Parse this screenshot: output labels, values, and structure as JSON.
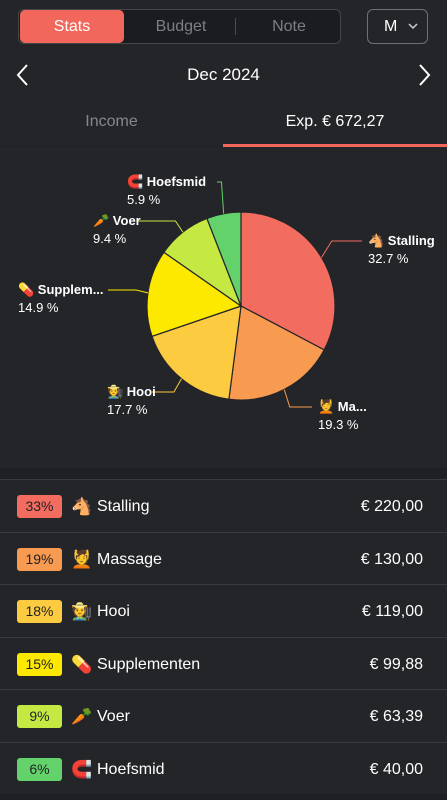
{
  "header": {
    "tabs": [
      {
        "label": "Stats",
        "active": true
      },
      {
        "label": "Budget",
        "active": false
      },
      {
        "label": "Note",
        "active": false
      }
    ],
    "period_label": "M",
    "period_chevron": "chevron-down-icon"
  },
  "month_nav": {
    "title": "Dec 2024",
    "prev_icon": "chevron-left-icon",
    "next_icon": "chevron-right-icon"
  },
  "summary_tabs": {
    "income_label": "Income",
    "expense_label": "Exp. € 672,27"
  },
  "colors": {
    "accent": "#f2675c",
    "background": "#1f2024",
    "panel": "#242529",
    "stalling": "#f26c5f",
    "massage": "#f89a4f",
    "hooi": "#fdcb3f",
    "supplementen": "#fde800",
    "voer": "#c5e843",
    "hoefsmid": "#64d26a"
  },
  "chart_data": {
    "type": "pie",
    "slices": [
      {
        "label": "Stalling",
        "chart_label": "Stalling",
        "icon": "🐴",
        "percent": 32.7,
        "percent_text": "32.7 %",
        "color": "#f26c5f"
      },
      {
        "label": "Massage",
        "chart_label": "Ma...",
        "icon": "💆",
        "percent": 19.3,
        "percent_text": "19.3 %",
        "color": "#f89a4f"
      },
      {
        "label": "Hooi",
        "chart_label": "Hooi",
        "icon": "🧑‍🌾",
        "percent": 17.7,
        "percent_text": "17.7 %",
        "color": "#fdcb3f"
      },
      {
        "label": "Supplementen",
        "chart_label": "Supplem...",
        "icon": "💊",
        "percent": 14.9,
        "percent_text": "14.9 %",
        "color": "#fde800"
      },
      {
        "label": "Voer",
        "chart_label": "Voer",
        "icon": "🥕",
        "percent": 9.4,
        "percent_text": "9.4 %",
        "color": "#c5e843"
      },
      {
        "label": "Hoefsmid",
        "chart_label": "Hoefsmid",
        "icon": "🧲",
        "percent": 5.9,
        "percent_text": "5.9 %",
        "color": "#64d26a"
      }
    ]
  },
  "categories": [
    {
      "badge": "33%",
      "icon": "🐴",
      "name": "Stalling",
      "amount": "€ 220,00",
      "color": "#f26c5f"
    },
    {
      "badge": "19%",
      "icon": "💆",
      "name": "Massage",
      "amount": "€ 130,00",
      "color": "#f89a4f"
    },
    {
      "badge": "18%",
      "icon": "🧑‍🌾",
      "name": "Hooi",
      "amount": "€ 119,00",
      "color": "#fdcb3f"
    },
    {
      "badge": "15%",
      "icon": "💊",
      "name": "Supplementen",
      "amount": "€ 99,88",
      "color": "#fde800"
    },
    {
      "badge": "9%",
      "icon": "🥕",
      "name": "Voer",
      "amount": "€ 63,39",
      "color": "#c5e843"
    },
    {
      "badge": "6%",
      "icon": "🧲",
      "name": "Hoefsmid",
      "amount": "€ 40,00",
      "color": "#64d26a"
    }
  ]
}
